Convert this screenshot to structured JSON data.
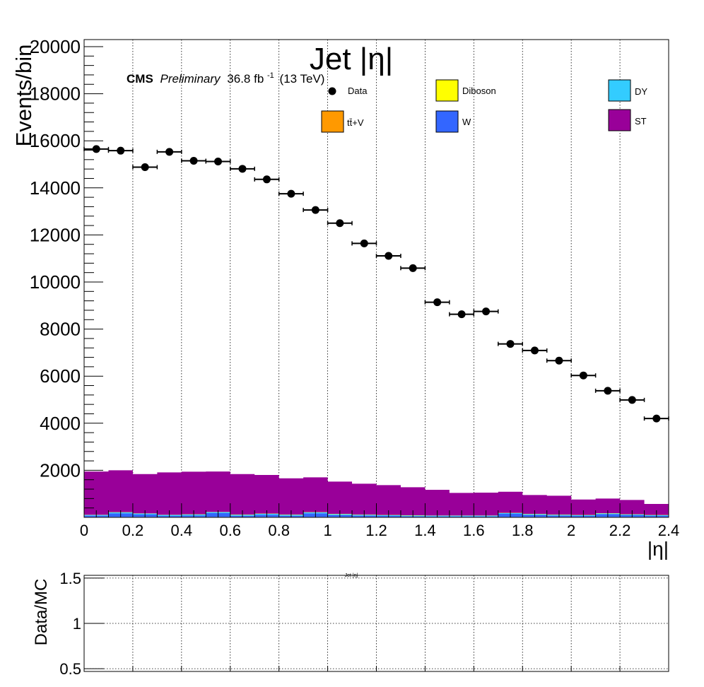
{
  "colors": {
    "diboson": "#ffff00",
    "dy": "#33ccff",
    "ttv": "#ff9900",
    "w": "#3366ff",
    "st": "#990099",
    "data": "#000000"
  },
  "chart_data": [
    {
      "type": "bar",
      "title": "Jet |η|",
      "annotation": {
        "experiment": "CMS",
        "status": "Preliminary",
        "lumi": "36.8 fb",
        "lumi_sup": "-1",
        "energy": "(13 TeV)"
      },
      "xlabel": "|η|",
      "ylabel": "Events/bin",
      "xlim": [
        0,
        2.4
      ],
      "ylim": [
        0,
        20300
      ],
      "grid": "vertical",
      "legend_position": "top",
      "x_ticks": [
        {
          "value": 0,
          "label": "0"
        },
        {
          "value": 0.2,
          "label": "0.2"
        },
        {
          "value": 0.4,
          "label": "0.4"
        },
        {
          "value": 0.6,
          "label": "0.6"
        },
        {
          "value": 0.8,
          "label": "0.8"
        },
        {
          "value": 1.0,
          "label": "1"
        },
        {
          "value": 1.2,
          "label": "1.2"
        },
        {
          "value": 1.4,
          "label": "1.4"
        },
        {
          "value": 1.6,
          "label": "1.6"
        },
        {
          "value": 1.8,
          "label": "1.8"
        },
        {
          "value": 2.0,
          "label": "2"
        },
        {
          "value": 2.2,
          "label": "2.2"
        },
        {
          "value": 2.4,
          "label": "2.4"
        }
      ],
      "y_ticks": [
        {
          "value": 2000,
          "label": "2000"
        },
        {
          "value": 4000,
          "label": "4000"
        },
        {
          "value": 6000,
          "label": "6000"
        },
        {
          "value": 8000,
          "label": "8000"
        },
        {
          "value": 10000,
          "label": "10000"
        },
        {
          "value": 12000,
          "label": "12000"
        },
        {
          "value": 14000,
          "label": "14000"
        },
        {
          "value": 16000,
          "label": "16000"
        },
        {
          "value": 18000,
          "label": "18000"
        },
        {
          "value": 20000,
          "label": "20000"
        }
      ],
      "bin_edges": [
        0,
        0.1,
        0.2,
        0.3,
        0.4,
        0.5,
        0.6,
        0.7,
        0.8,
        0.9,
        1.0,
        1.1,
        1.2,
        1.3,
        1.4,
        1.5,
        1.6,
        1.7,
        1.8,
        1.9,
        2.0,
        2.1,
        2.2,
        2.3,
        2.4
      ],
      "legend": [
        {
          "key": "data",
          "label": "Data",
          "marker": "point"
        },
        {
          "key": "diboson",
          "label": "Diboson",
          "marker": "box"
        },
        {
          "key": "dy",
          "label": "DY",
          "marker": "box"
        },
        {
          "key": "ttv",
          "label": "tt̄+V",
          "marker": "box"
        },
        {
          "key": "w",
          "label": "W",
          "marker": "box"
        },
        {
          "key": "st",
          "label": "ST",
          "marker": "box"
        }
      ],
      "series": [
        {
          "key": "ttv",
          "stacked": true,
          "values": [
            20,
            20,
            20,
            20,
            20,
            20,
            20,
            20,
            20,
            20,
            20,
            20,
            20,
            20,
            20,
            20,
            20,
            20,
            20,
            20,
            20,
            20,
            20,
            20
          ]
        },
        {
          "key": "w",
          "stacked": true,
          "values": [
            50,
            150,
            100,
            40,
            60,
            160,
            50,
            90,
            50,
            150,
            80,
            60,
            40,
            30,
            20,
            20,
            20,
            130,
            90,
            60,
            40,
            120,
            70,
            40
          ]
        },
        {
          "key": "dy",
          "stacked": true,
          "values": [
            30,
            40,
            40,
            40,
            40,
            40,
            40,
            40,
            40,
            40,
            40,
            30,
            30,
            30,
            30,
            30,
            30,
            30,
            30,
            30,
            30,
            30,
            30,
            30
          ]
        },
        {
          "key": "diboson",
          "stacked": true,
          "values": [
            10,
            10,
            10,
            10,
            10,
            10,
            10,
            10,
            10,
            10,
            10,
            10,
            10,
            10,
            10,
            10,
            10,
            10,
            10,
            10,
            10,
            10,
            10,
            10
          ]
        },
        {
          "key": "st",
          "stacked": true,
          "values": [
            1840,
            1780,
            1670,
            1800,
            1810,
            1720,
            1720,
            1640,
            1540,
            1480,
            1370,
            1310,
            1270,
            1190,
            1090,
            960,
            970,
            900,
            800,
            800,
            660,
            620,
            610,
            470
          ]
        },
        {
          "key": "data",
          "type": "points",
          "x": [
            0.05,
            0.15,
            0.25,
            0.35,
            0.45,
            0.55,
            0.65,
            0.75,
            0.85,
            0.95,
            1.05,
            1.15,
            1.25,
            1.35,
            1.45,
            1.55,
            1.65,
            1.75,
            1.85,
            1.95,
            2.05,
            2.15,
            2.25,
            2.35
          ],
          "values": [
            15650,
            15580,
            14880,
            15530,
            15150,
            15120,
            14810,
            14360,
            13750,
            13060,
            12500,
            11640,
            11110,
            10590,
            9140,
            8630,
            8750,
            7370,
            7090,
            6660,
            6030,
            5380,
            4990,
            4200
          ]
        }
      ]
    },
    {
      "type": "scatter",
      "title": "Jet |η|",
      "xlabel": "",
      "ylabel": "Data/MC",
      "xlim": [
        0,
        2.4
      ],
      "ylim": [
        0.47,
        1.53
      ],
      "grid": "both",
      "y_ticks": [
        {
          "value": 0.5,
          "label": "0.5"
        },
        {
          "value": 1,
          "label": "1"
        },
        {
          "value": 1.5,
          "label": "1.5"
        }
      ],
      "series": []
    }
  ]
}
